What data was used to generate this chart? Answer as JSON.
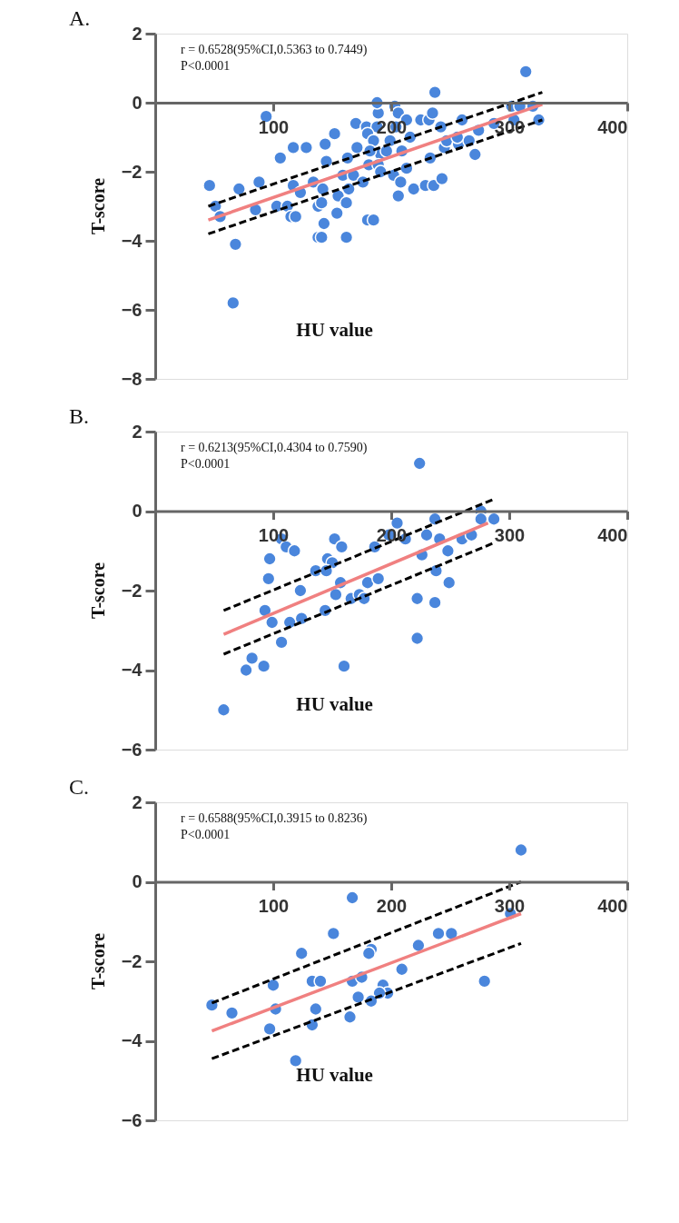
{
  "chart_data": [
    {
      "type": "scatter",
      "title": "A.",
      "xlabel": "HU value",
      "ylabel": "T-score",
      "xlim": [
        0,
        400
      ],
      "xticks": [
        100,
        200,
        300,
        400
      ],
      "ylim": [
        -8,
        2
      ],
      "yticks": [
        -8,
        -6,
        -4,
        -2,
        0,
        2
      ],
      "grid": false,
      "annotations": [
        "r = 0.6528(95%CI,0.5363 to 0.7449)",
        "P<0.0001"
      ],
      "series": [
        {
          "marker": "circle",
          "color": "#4a86dc",
          "x": [
            94,
            117,
            128,
            106,
            46,
            71,
            88,
            51,
            55,
            85,
            103,
            112,
            115,
            119,
            117,
            123,
            134,
            68,
            66,
            138,
            138,
            144,
            152,
            145,
            142,
            141,
            143,
            141,
            155,
            162,
            154,
            164,
            159,
            168,
            163,
            176,
            171,
            180,
            185,
            162,
            170,
            179,
            188,
            180,
            185,
            189,
            188,
            203,
            206,
            213,
            225,
            232,
            237,
            235,
            242,
            204,
            199,
            216,
            209,
            181,
            191,
            189,
            191,
            202,
            213,
            208,
            206,
            219,
            229,
            236,
            243,
            233,
            245,
            247,
            257,
            260,
            266,
            271,
            274,
            287,
            304,
            302,
            309,
            320,
            325,
            314,
            256,
            196,
            182
          ],
          "values": [
            -0.4,
            -1.3,
            -1.3,
            -1.6,
            -2.4,
            -2.5,
            -2.3,
            -3.0,
            -3.3,
            -3.1,
            -3.0,
            -3.0,
            -3.3,
            -3.3,
            -2.4,
            -2.6,
            -2.3,
            -4.1,
            -5.8,
            -3.0,
            -3.9,
            -1.2,
            -0.9,
            -1.7,
            -2.5,
            -2.9,
            -3.5,
            -3.9,
            -2.7,
            -2.9,
            -3.2,
            -2.5,
            -2.1,
            -2.1,
            -1.6,
            -2.3,
            -1.3,
            -3.4,
            -3.4,
            -3.9,
            -0.6,
            -0.7,
            -0.7,
            -0.9,
            -1.1,
            -0.3,
            0.0,
            -0.1,
            -0.3,
            -0.5,
            -0.5,
            -0.5,
            0.3,
            -0.3,
            -0.7,
            -0.7,
            -1.1,
            -1.0,
            -1.4,
            -1.8,
            -1.5,
            -1.8,
            -2.0,
            -2.1,
            -1.9,
            -2.3,
            -2.7,
            -2.5,
            -2.4,
            -2.4,
            -2.2,
            -1.6,
            -1.3,
            -1.1,
            -1.2,
            -0.5,
            -1.1,
            -1.5,
            -0.8,
            -0.6,
            -0.5,
            -0.1,
            -0.1,
            -0.1,
            -0.5,
            0.9,
            -1.0,
            -1.4,
            -1.4
          ]
        },
        {
          "type": "line",
          "marker": "none",
          "color": "#f08080",
          "line_style": "solid",
          "x": [
            45,
            328
          ],
          "values": [
            -3.4,
            -0.05
          ]
        },
        {
          "type": "line",
          "marker": "none",
          "color": "#000000",
          "line_style": "dashed",
          "x": [
            45,
            328
          ],
          "values": [
            -3.0,
            0.3
          ]
        },
        {
          "type": "line",
          "marker": "none",
          "color": "#000000",
          "line_style": "dashed",
          "x": [
            45,
            328
          ],
          "values": [
            -3.8,
            -0.5
          ]
        }
      ]
    },
    {
      "type": "scatter",
      "title": "B.",
      "xlabel": "HU value",
      "ylabel": "T-score",
      "xlim": [
        0,
        400
      ],
      "xticks": [
        100,
        200,
        300,
        400
      ],
      "ylim": [
        -6,
        2
      ],
      "yticks": [
        -6,
        -4,
        -2,
        0,
        2
      ],
      "grid": false,
      "annotations": [
        "r = 0.6213(95%CI,0.4304 to 0.7590)",
        "P<0.0001"
      ],
      "series": [
        {
          "marker": "circle",
          "color": "#4a86dc",
          "x": [
            107,
            111,
            118,
            97,
            96,
            123,
            93,
            99,
            114,
            124,
            107,
            82,
            77,
            92,
            58,
            136,
            224,
            152,
            158,
            146,
            150,
            145,
            157,
            153,
            144,
            166,
            173,
            177,
            180,
            189,
            160,
            186,
            198,
            205,
            212,
            226,
            230,
            237,
            241,
            238,
            249,
            248,
            260,
            268,
            276,
            276,
            287,
            222,
            237,
            222
          ],
          "values": [
            -0.7,
            -0.9,
            -1.0,
            -1.2,
            -1.7,
            -2.0,
            -2.5,
            -2.8,
            -2.8,
            -2.7,
            -3.3,
            -3.7,
            -4.0,
            -3.9,
            -5.0,
            -1.5,
            1.2,
            -0.7,
            -0.9,
            -1.2,
            -1.3,
            -1.5,
            -1.8,
            -2.1,
            -2.5,
            -2.2,
            -2.1,
            -2.2,
            -1.8,
            -1.7,
            -3.9,
            -0.9,
            -0.6,
            -0.3,
            -0.7,
            -1.1,
            -0.6,
            -0.2,
            -0.7,
            -1.5,
            -1.8,
            -1.0,
            -0.7,
            -0.6,
            0.0,
            -0.2,
            -0.2,
            -2.2,
            -2.3,
            -3.2
          ]
        },
        {
          "type": "line",
          "marker": "none",
          "color": "#f08080",
          "line_style": "solid",
          "x": [
            58,
            282
          ],
          "values": [
            -3.1,
            -0.3
          ]
        },
        {
          "type": "line",
          "marker": "none",
          "color": "#000000",
          "line_style": "dashed",
          "x": [
            58,
            287
          ],
          "values": [
            -2.5,
            0.3
          ]
        },
        {
          "type": "line",
          "marker": "none",
          "color": "#000000",
          "line_style": "dashed",
          "x": [
            58,
            287
          ],
          "values": [
            -3.6,
            -0.8
          ]
        }
      ]
    },
    {
      "type": "scatter",
      "title": "C.",
      "xlabel": "HU value",
      "ylabel": "T-score",
      "xlim": [
        0,
        400
      ],
      "xticks": [
        100,
        200,
        300,
        400
      ],
      "ylim": [
        -6,
        2
      ],
      "yticks": [
        -6,
        -4,
        -2,
        0,
        2
      ],
      "grid": false,
      "annotations": [
        "r = 0.6588(95%CI,0.3915 to 0.8236)",
        "P<0.0001"
      ],
      "series": [
        {
          "marker": "circle",
          "color": "#4a86dc",
          "x": [
            310,
            167,
            151,
            124,
            183,
            181,
            223,
            240,
            251,
            301,
            209,
            279,
            100,
            133,
            140,
            167,
            175,
            193,
            197,
            190,
            172,
            183,
            48,
            65,
            102,
            136,
            165,
            133,
            97,
            119
          ],
          "values": [
            0.8,
            -0.4,
            -1.3,
            -1.8,
            -1.7,
            -1.8,
            -1.6,
            -1.3,
            -1.3,
            -0.8,
            -2.2,
            -2.5,
            -2.6,
            -2.5,
            -2.5,
            -2.5,
            -2.4,
            -2.6,
            -2.8,
            -2.8,
            -2.9,
            -3.0,
            -3.1,
            -3.3,
            -3.2,
            -3.2,
            -3.4,
            -3.6,
            -3.7,
            -4.5
          ]
        },
        {
          "type": "line",
          "marker": "none",
          "color": "#f08080",
          "line_style": "solid",
          "x": [
            48,
            310
          ],
          "values": [
            -3.75,
            -0.8
          ]
        },
        {
          "type": "line",
          "marker": "none",
          "color": "#000000",
          "line_style": "dashed",
          "x": [
            48,
            310
          ],
          "values": [
            -3.05,
            0.0
          ]
        },
        {
          "type": "line",
          "marker": "none",
          "color": "#000000",
          "line_style": "dashed",
          "x": [
            48,
            310
          ],
          "values": [
            -4.45,
            -1.55
          ]
        }
      ]
    }
  ]
}
